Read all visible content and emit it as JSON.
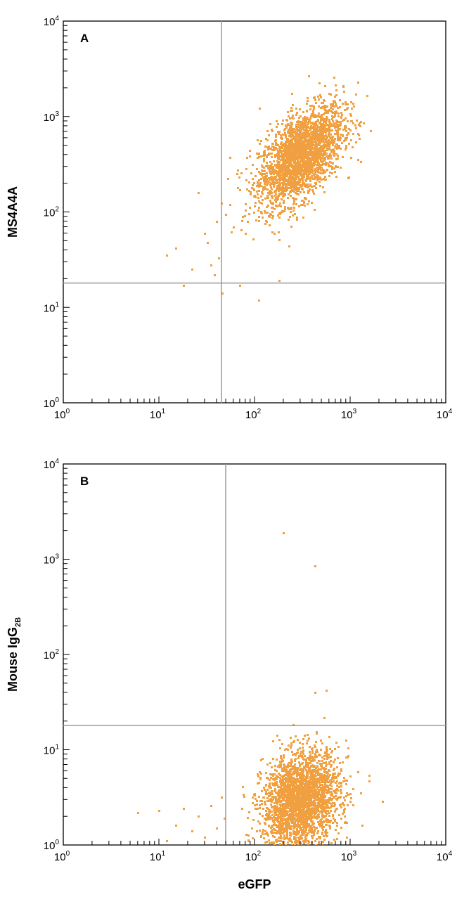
{
  "colors": {
    "points": "#f0a040",
    "frame": "#000000",
    "quadrant_lines": "#9a9a9a"
  },
  "chart_data": [
    {
      "type": "scatter",
      "panel_label": "A",
      "ylabel": "MS4A4A",
      "xlabel": "",
      "x_scale": "log",
      "y_scale": "log",
      "xlim": [
        1,
        10000
      ],
      "ylim": [
        1,
        10000
      ],
      "x_ticks": [
        "10^0",
        "10^1",
        "10^2",
        "10^3",
        "10^4"
      ],
      "y_ticks": [
        "10^0",
        "10^1",
        "10^2",
        "10^3",
        "10^4"
      ],
      "quadrant_gate": {
        "x": 45,
        "y": 18
      },
      "clusters": [
        {
          "center_x": 300,
          "center_y": 400,
          "spread_log_x": 0.22,
          "spread_log_y": 0.26,
          "correlation": 0.55,
          "approx_points": 2600
        }
      ],
      "outliers": [
        {
          "x": 12,
          "y": 35
        },
        {
          "x": 15,
          "y": 42
        },
        {
          "x": 18,
          "y": 17
        },
        {
          "x": 22,
          "y": 25
        },
        {
          "x": 26,
          "y": 160
        },
        {
          "x": 30,
          "y": 60
        },
        {
          "x": 32,
          "y": 48
        },
        {
          "x": 35,
          "y": 28
        },
        {
          "x": 38,
          "y": 22
        },
        {
          "x": 40,
          "y": 80
        },
        {
          "x": 42,
          "y": 33
        },
        {
          "x": 46,
          "y": 14
        },
        {
          "x": 50,
          "y": 95
        },
        {
          "x": 55,
          "y": 120
        },
        {
          "x": 60,
          "y": 70
        },
        {
          "x": 65,
          "y": 250
        },
        {
          "x": 70,
          "y": 17
        },
        {
          "x": 75,
          "y": 90
        },
        {
          "x": 80,
          "y": 60
        },
        {
          "x": 110,
          "y": 12
        },
        {
          "x": 180,
          "y": 19
        },
        {
          "x": 1200,
          "y": 2300
        }
      ]
    },
    {
      "type": "scatter",
      "panel_label": "B",
      "ylabel": "Mouse IgG",
      "ylabel_subscript": "2B",
      "xlabel": "eGFP",
      "x_scale": "log",
      "y_scale": "log",
      "xlim": [
        1,
        10000
      ],
      "ylim": [
        1,
        10000
      ],
      "x_ticks": [
        "10^0",
        "10^1",
        "10^2",
        "10^3",
        "10^4"
      ],
      "y_ticks": [
        "10^0",
        "10^1",
        "10^2",
        "10^3",
        "10^4"
      ],
      "quadrant_gate": {
        "x": 50,
        "y": 18
      },
      "clusters": [
        {
          "center_x": 300,
          "center_y": 3,
          "spread_log_x": 0.2,
          "spread_log_y": 0.25,
          "correlation": 0.2,
          "approx_points": 2600
        }
      ],
      "outliers": [
        {
          "x": 200,
          "y": 1900
        },
        {
          "x": 430,
          "y": 850
        },
        {
          "x": 430,
          "y": 40
        },
        {
          "x": 560,
          "y": 42
        },
        {
          "x": 6,
          "y": 2.2
        },
        {
          "x": 10,
          "y": 2.3
        },
        {
          "x": 12,
          "y": 1.1
        },
        {
          "x": 15,
          "y": 1.6
        },
        {
          "x": 18,
          "y": 2.4
        },
        {
          "x": 22,
          "y": 1.4
        },
        {
          "x": 26,
          "y": 2.0
        },
        {
          "x": 30,
          "y": 1.2
        },
        {
          "x": 35,
          "y": 2.6
        },
        {
          "x": 40,
          "y": 1.5
        },
        {
          "x": 45,
          "y": 3.2
        },
        {
          "x": 48,
          "y": 1.9
        },
        {
          "x": 1300,
          "y": 3.5
        }
      ]
    }
  ]
}
